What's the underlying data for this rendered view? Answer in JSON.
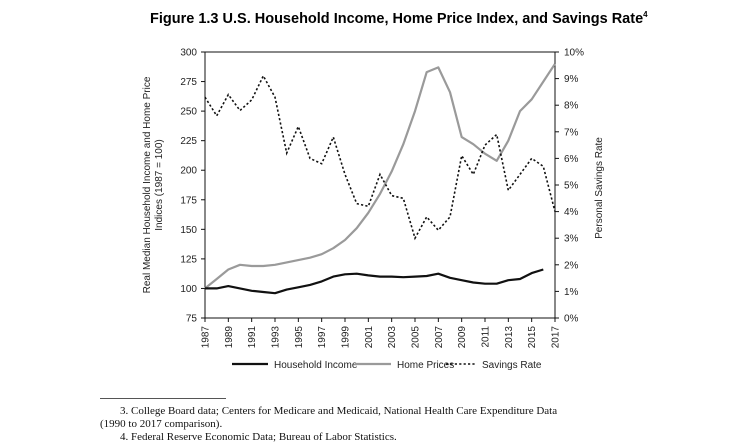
{
  "chart_data": {
    "type": "line",
    "title": "Figure 1.3 U.S. Household Income, Home Price Index, and Savings Rate",
    "title_superscript": "4",
    "ylabel_left_line1": "Real Median Household Income and Home Price",
    "ylabel_left_line2": "Indices (1987 = 100)",
    "ylabel_right": "Personal Savings Rate",
    "ylim_left": [
      75,
      300
    ],
    "ylim_right": [
      0,
      10
    ],
    "yticks_left": [
      "75",
      "100",
      "125",
      "150",
      "175",
      "200",
      "225",
      "250",
      "275",
      "300"
    ],
    "yticks_right": [
      "0%",
      "1%",
      "2%",
      "3%",
      "4%",
      "5%",
      "6%",
      "7%",
      "8%",
      "9%",
      "10%"
    ],
    "xlim": [
      1987,
      2017
    ],
    "xticks": [
      "1987",
      "1989",
      "1991",
      "1993",
      "1995",
      "1997",
      "1999",
      "2001",
      "2003",
      "2005",
      "2007",
      "2009",
      "2011",
      "2013",
      "2015",
      "2017"
    ],
    "series": [
      {
        "name": "Household Income",
        "axis": "left",
        "style": "solid-black",
        "points": [
          [
            1987,
            100
          ],
          [
            1988,
            100
          ],
          [
            1989,
            102
          ],
          [
            1990,
            100
          ],
          [
            1991,
            98
          ],
          [
            1992,
            97
          ],
          [
            1993,
            96
          ],
          [
            1994,
            99
          ],
          [
            1995,
            101
          ],
          [
            1996,
            103
          ],
          [
            1997,
            106
          ],
          [
            1998,
            110
          ],
          [
            1999,
            112
          ],
          [
            2000,
            112.5
          ],
          [
            2001,
            111
          ],
          [
            2002,
            110
          ],
          [
            2003,
            110
          ],
          [
            2004,
            109.5
          ],
          [
            2005,
            110
          ],
          [
            2006,
            110.5
          ],
          [
            2007,
            112.5
          ],
          [
            2008,
            109
          ],
          [
            2009,
            107
          ],
          [
            2010,
            105
          ],
          [
            2011,
            104
          ],
          [
            2012,
            104
          ],
          [
            2013,
            107
          ],
          [
            2014,
            108
          ],
          [
            2015,
            113
          ],
          [
            2016,
            116
          ]
        ]
      },
      {
        "name": "Home Prices",
        "axis": "left",
        "style": "solid-gray",
        "points": [
          [
            1987,
            100
          ],
          [
            1988,
            108
          ],
          [
            1989,
            116
          ],
          [
            1990,
            120
          ],
          [
            1991,
            119
          ],
          [
            1992,
            119
          ],
          [
            1993,
            120
          ],
          [
            1994,
            122
          ],
          [
            1995,
            124
          ],
          [
            1996,
            126
          ],
          [
            1997,
            129
          ],
          [
            1998,
            134
          ],
          [
            1999,
            141
          ],
          [
            2000,
            151
          ],
          [
            2001,
            164
          ],
          [
            2002,
            180
          ],
          [
            2003,
            199
          ],
          [
            2004,
            222
          ],
          [
            2005,
            250
          ],
          [
            2006,
            283
          ],
          [
            2007,
            287
          ],
          [
            2008,
            266
          ],
          [
            2009,
            228
          ],
          [
            2010,
            222
          ],
          [
            2011,
            214
          ],
          [
            2012,
            208
          ],
          [
            2013,
            225
          ],
          [
            2014,
            250
          ],
          [
            2015,
            260
          ],
          [
            2016,
            275
          ],
          [
            2017,
            290
          ]
        ]
      },
      {
        "name": "Savings Rate",
        "axis": "right",
        "style": "dotted-black",
        "points": [
          [
            1987,
            8.3
          ],
          [
            1988,
            7.6
          ],
          [
            1989,
            8.4
          ],
          [
            1990,
            7.8
          ],
          [
            1991,
            8.2
          ],
          [
            1992,
            9.1
          ],
          [
            1993,
            8.3
          ],
          [
            1994,
            6.2
          ],
          [
            1995,
            7.2
          ],
          [
            1996,
            6.0
          ],
          [
            1997,
            5.8
          ],
          [
            1998,
            6.8
          ],
          [
            1999,
            5.4
          ],
          [
            2000,
            4.3
          ],
          [
            2001,
            4.2
          ],
          [
            2002,
            5.4
          ],
          [
            2003,
            4.6
          ],
          [
            2004,
            4.5
          ],
          [
            2005,
            3.0
          ],
          [
            2006,
            3.8
          ],
          [
            2007,
            3.3
          ],
          [
            2008,
            3.8
          ],
          [
            2009,
            6.1
          ],
          [
            2010,
            5.4
          ],
          [
            2011,
            6.5
          ],
          [
            2012,
            6.9
          ],
          [
            2013,
            4.8
          ],
          [
            2014,
            5.4
          ],
          [
            2015,
            6.0
          ],
          [
            2016,
            5.7
          ],
          [
            2017,
            4.0
          ]
        ]
      }
    ],
    "legend_position": "bottom"
  },
  "footnotes": [
    {
      "number": "3.",
      "line1": "College Board data; Centers for Medicare and Medicaid, National Health Care Expenditure Data",
      "line2": "(1990 to 2017 comparison)."
    },
    {
      "number": "4.",
      "line1": "Federal Reserve Economic Data; Bureau of Labor Statistics."
    }
  ]
}
